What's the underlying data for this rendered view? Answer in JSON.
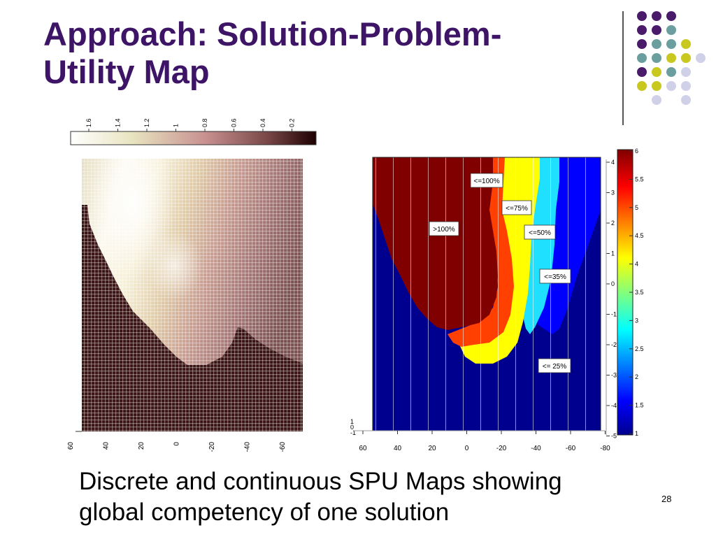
{
  "slide": {
    "title_line1": "Approach: Solution-Problem-",
    "title_line2": "Utility Map",
    "caption_line1": "Discrete and continuous SPU Maps showing",
    "caption_line2": "global competency of one solution",
    "page_number": "28"
  },
  "colors": {
    "title": "#3d1466",
    "dot_purple": "#4a1a6b",
    "dot_teal": "#6b9e9e",
    "dot_yellow": "#c8c81e",
    "dot_lavender": "#d0d0e8"
  },
  "decor_dots": [
    [
      "purple",
      "purple",
      "purple",
      "empty",
      "empty"
    ],
    [
      "purple",
      "purple",
      "teal",
      "empty",
      "empty"
    ],
    [
      "purple",
      "teal",
      "teal",
      "yellow",
      "empty"
    ],
    [
      "teal",
      "teal",
      "yellow",
      "yellow",
      "lavender"
    ],
    [
      "purple",
      "yellow",
      "teal",
      "lavender",
      "empty"
    ],
    [
      "yellow",
      "yellow",
      "lavender",
      "lavender",
      "empty"
    ],
    [
      "empty",
      "lavender",
      "empty",
      "lavender",
      "empty"
    ]
  ],
  "chart_data": [
    {
      "type": "heatmap",
      "name": "continuous-spu-map",
      "colorbar_ticks": [
        "1.6",
        "1.4",
        "1.2",
        "1",
        "0.8",
        "0.6",
        "0.4",
        "0.2"
      ],
      "x_ticks": [
        "60",
        "40",
        "20",
        "0",
        "-20",
        "-40",
        "-60"
      ],
      "colormap": "pink"
    },
    {
      "type": "heatmap",
      "name": "discrete-spu-map",
      "x_ticks": [
        "60",
        "40",
        "20",
        "0",
        "-20",
        "-40",
        "-60",
        "-80"
      ],
      "y_ticks_left": [
        "1",
        "0",
        "-1"
      ],
      "y_ticks_right": [
        "4",
        "3",
        "2",
        "1",
        "0",
        "-1",
        "-2",
        "-3",
        "-4",
        "-5"
      ],
      "colorbar_ticks": [
        "6",
        "5.5",
        "5",
        "4.5",
        "4",
        "3.5",
        "3",
        "2.5",
        "2",
        "1.5",
        "1"
      ],
      "colorbar_range": [
        1,
        6
      ],
      "colormap": "jet",
      "regions": [
        {
          "label": ">100%",
          "color": "#800000"
        },
        {
          "label": "<=100%",
          "color": "#800000"
        },
        {
          "label": "<=75%",
          "color": "#ff4000"
        },
        {
          "label": "<=50%",
          "color": "#ffff00"
        },
        {
          "label": "<=35%",
          "color": "#20e0ff"
        },
        {
          "label": "<= 25%",
          "color": "#00008f"
        }
      ]
    }
  ]
}
